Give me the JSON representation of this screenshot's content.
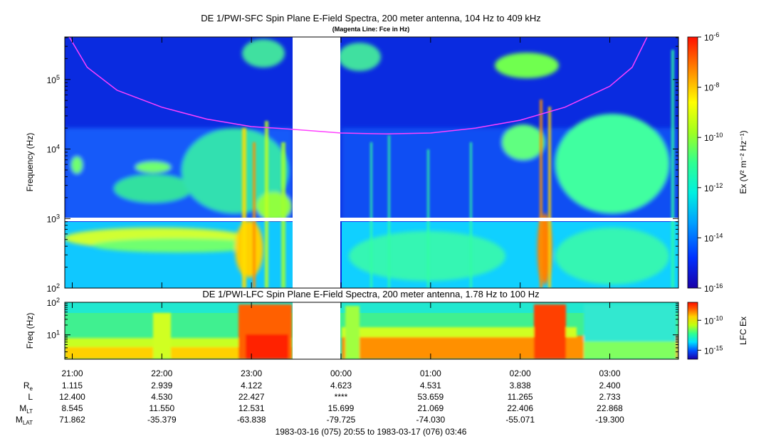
{
  "chart_data": [
    {
      "type": "heatmap",
      "title": "DE 1/PWI-SFC  Spin Plane E-Field Spectra, 200 meter antenna, 104 Hz to 409 kHz",
      "subtitle": "(Magenta Line: Fce in Hz)",
      "ylabel": "Frequency (Hz)",
      "yscale": "log",
      "ylim": [
        100,
        409000
      ],
      "y_ticks": [
        {
          "label": "10",
          "sup": "2",
          "value": 100
        },
        {
          "label": "10",
          "sup": "3",
          "value": 1000
        },
        {
          "label": "10",
          "sup": "4",
          "value": 10000
        },
        {
          "label": "10",
          "sup": "5",
          "value": 100000
        }
      ],
      "colorbar": {
        "label": "Ex (V² m⁻² Hz⁻¹)",
        "scale": "log",
        "ticks": [
          {
            "label": "10",
            "sup": "-6",
            "value": 1e-06
          },
          {
            "label": "10",
            "sup": "-8",
            "value": 1e-08
          },
          {
            "label": "10",
            "sup": "-10",
            "value": 1e-10
          },
          {
            "label": "10",
            "sup": "-12",
            "value": 1e-12
          },
          {
            "label": "10",
            "sup": "-14",
            "value": 1e-14
          },
          {
            "label": "10",
            "sup": "-16",
            "value": 1e-16
          }
        ]
      },
      "data_gaps": [
        {
          "from": "23:25",
          "to": "23:59"
        }
      ],
      "fce_line": {
        "name": "Fce",
        "color": "#ff40ff",
        "points": [
          {
            "t": "20:58",
            "f": 409000
          },
          {
            "t": "21:10",
            "f": 150000
          },
          {
            "t": "21:30",
            "f": 70000
          },
          {
            "t": "22:00",
            "f": 40000
          },
          {
            "t": "22:30",
            "f": 27000
          },
          {
            "t": "23:00",
            "f": 21000
          },
          {
            "t": "23:24",
            "f": 19500
          },
          {
            "t": "00:00",
            "f": 17000
          },
          {
            "t": "00:30",
            "f": 16500
          },
          {
            "t": "01:00",
            "f": 17000
          },
          {
            "t": "01:30",
            "f": 20000
          },
          {
            "t": "02:00",
            "f": 26000
          },
          {
            "t": "02:30",
            "f": 40000
          },
          {
            "t": "03:00",
            "f": 80000
          },
          {
            "t": "03:15",
            "f": 150000
          },
          {
            "t": "03:25",
            "f": 409000
          }
        ]
      }
    },
    {
      "type": "heatmap",
      "title": "DE 1/PWI-LFC  Spin Plane E-Field Spectra, 200 meter antenna, 1.78 Hz to 100 Hz",
      "ylabel": "Freq (Hz)",
      "yscale": "log",
      "ylim": [
        1.78,
        100
      ],
      "y_ticks": [
        {
          "label": "10",
          "sup": "1",
          "value": 10
        },
        {
          "label": "10",
          "sup": "2",
          "value": 100
        }
      ],
      "colorbar": {
        "label": "LFC Ex",
        "scale": "log",
        "ticks": [
          {
            "label": "10",
            "sup": "-10",
            "value": 1e-10
          },
          {
            "label": "10",
            "sup": "-15",
            "value": 1e-15
          }
        ]
      },
      "data_gaps": [
        {
          "from": "23:25",
          "to": "23:59"
        }
      ]
    }
  ],
  "x_ticks": [
    "21:00",
    "22:00",
    "23:00",
    "00:00",
    "01:00",
    "02:00",
    "03:00"
  ],
  "ephemeris": [
    {
      "main": "R",
      "sub": "e",
      "values": [
        "1.115",
        "2.939",
        "4.122",
        "4.623",
        "4.531",
        "3.838",
        "2.400"
      ]
    },
    {
      "main": "L",
      "sub": "",
      "values": [
        "12.400",
        "4.530",
        "22.427",
        "****",
        "53.659",
        "11.265",
        "2.733"
      ]
    },
    {
      "main": "M",
      "sub": "LT",
      "values": [
        "8.545",
        "11.550",
        "12.531",
        "15.699",
        "21.069",
        "22.406",
        "22.868"
      ]
    },
    {
      "main": "M",
      "sub": "LAT",
      "values": [
        "71.862",
        "-35.379",
        "-63.838",
        "-79.725",
        "-74.030",
        "-55.071",
        "-19.300"
      ]
    }
  ],
  "time_range": "1983-03-16 (075) 20:55 to 1983-03-17 (076) 03:46"
}
